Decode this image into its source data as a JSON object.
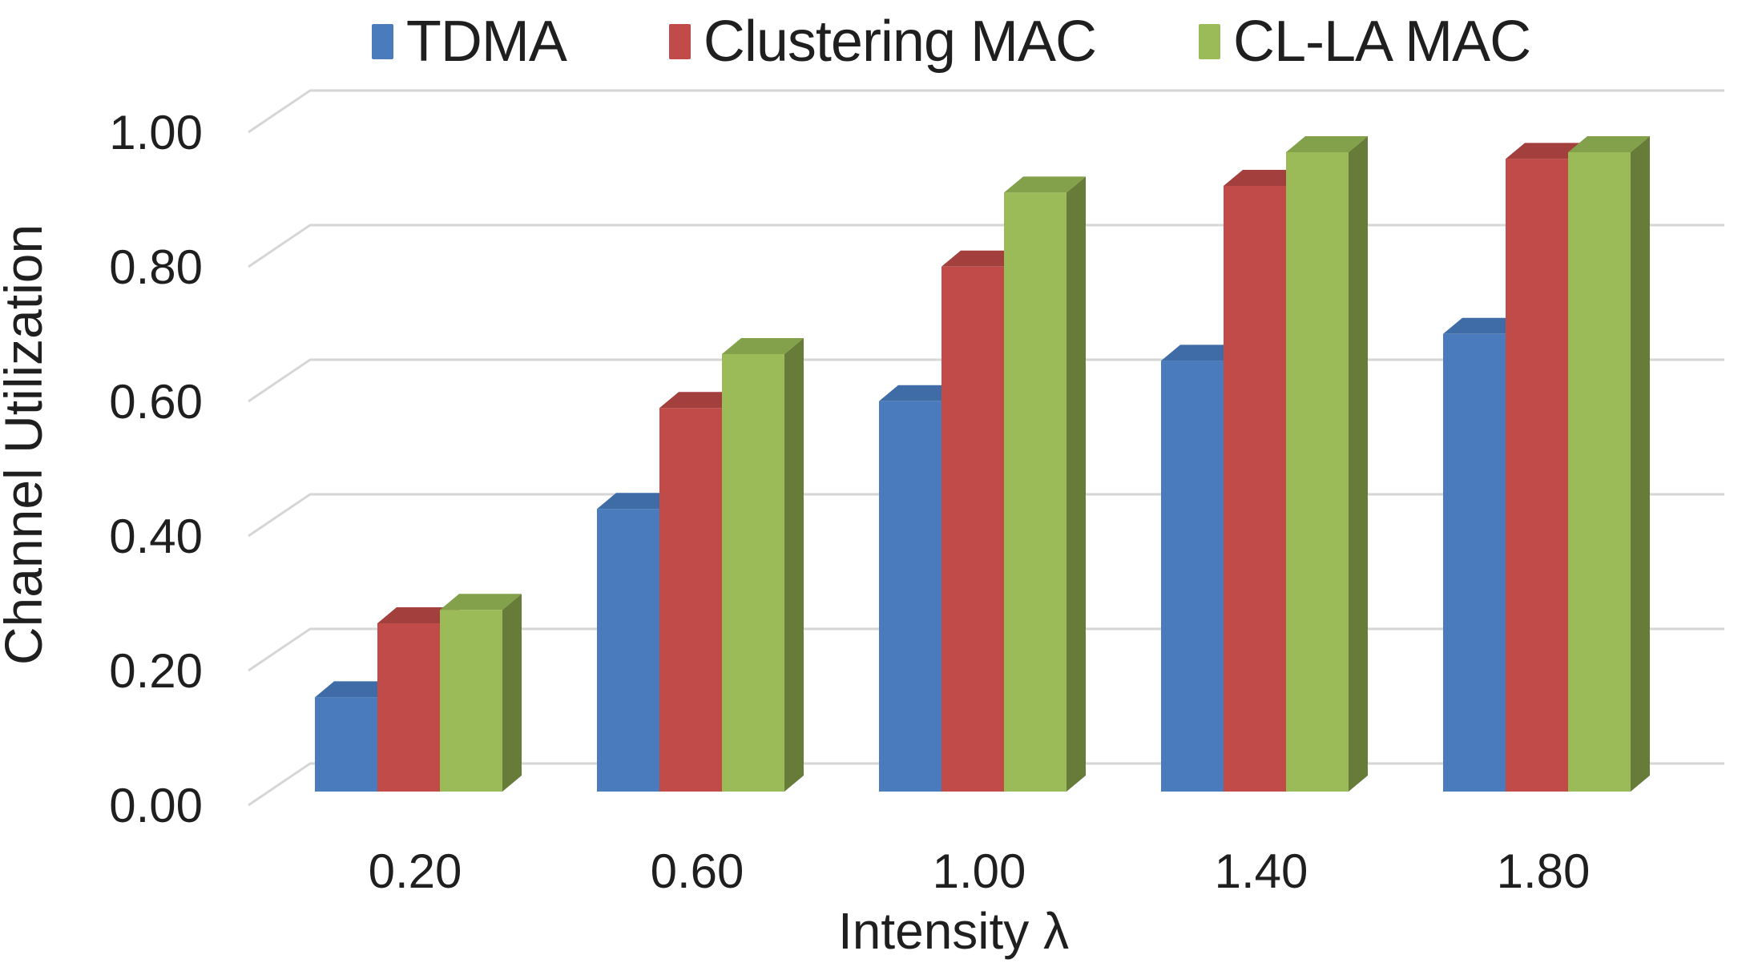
{
  "chart_data": {
    "type": "bar",
    "variant": "3d-clustered",
    "title": "",
    "xlabel": "Intensity λ",
    "ylabel": "Channel Utilization",
    "categories": [
      "0.20",
      "0.60",
      "1.00",
      "1.40",
      "1.80"
    ],
    "series": [
      {
        "name": "TDMA",
        "color": "#4A7CBD",
        "color_top": "#3F6CA6",
        "color_side": "#36598C",
        "values": [
          0.14,
          0.42,
          0.58,
          0.64,
          0.68
        ]
      },
      {
        "name": "Clustering MAC",
        "color": "#C04B48",
        "color_top": "#A33F3D",
        "color_side": "#8C3633",
        "values": [
          0.25,
          0.57,
          0.78,
          0.9,
          0.94
        ]
      },
      {
        "name": "CL-LA MAC",
        "color": "#9BBB59",
        "color_top": "#83A04A",
        "color_side": "#677C38",
        "values": [
          0.27,
          0.65,
          0.89,
          0.95,
          0.95
        ]
      }
    ],
    "ylim": [
      0.0,
      1.0
    ],
    "ytick_step": 0.2,
    "ytick_labels": [
      "0.00",
      "0.20",
      "0.40",
      "0.60",
      "0.80",
      "1.00"
    ],
    "grid": true,
    "legend_position": "top",
    "gridline_color": "#D6D6D6",
    "text_color": "#1f1f1f",
    "background": "#FFFFFF"
  }
}
